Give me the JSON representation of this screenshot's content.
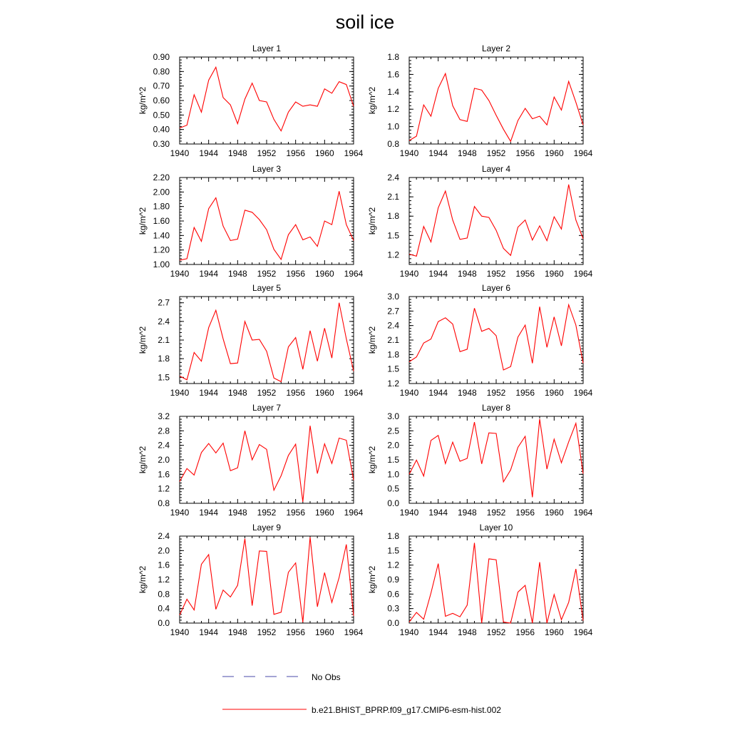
{
  "title": "soil ice",
  "legend": {
    "items": [
      {
        "label": "No Obs",
        "color": "#4a4aa8",
        "dash": true
      },
      {
        "label": "b.e21.BHIST_BPRP.f09_g17.CMIP6-esm-hist.002",
        "color": "#ff0000",
        "dash": false
      }
    ]
  },
  "chart_data": [
    {
      "type": "line",
      "title": "Layer 1",
      "ylabel": "kg/m^2",
      "xlim": [
        1940,
        1964
      ],
      "xticks": [
        1940,
        1944,
        1948,
        1952,
        1956,
        1960,
        1964
      ],
      "ylim": [
        0.3,
        0.9
      ],
      "yticks": [
        "0.30",
        "0.40",
        "0.50",
        "0.60",
        "0.70",
        "0.80",
        "0.90"
      ],
      "x": [
        1940,
        1941,
        1942,
        1943,
        1944,
        1945,
        1946,
        1947,
        1948,
        1949,
        1950,
        1951,
        1952,
        1953,
        1954,
        1955,
        1956,
        1957,
        1958,
        1959,
        1960,
        1961,
        1962,
        1963,
        1964
      ],
      "series": [
        {
          "name": "b.e21.BHIST_BPRP.f09_g17.CMIP6-esm-hist.002",
          "values": [
            0.41,
            0.43,
            0.64,
            0.52,
            0.74,
            0.83,
            0.62,
            0.57,
            0.44,
            0.61,
            0.72,
            0.6,
            0.59,
            0.47,
            0.39,
            0.52,
            0.59,
            0.56,
            0.57,
            0.56,
            0.68,
            0.65,
            0.73,
            0.71,
            0.56
          ]
        }
      ]
    },
    {
      "type": "line",
      "title": "Layer 2",
      "ylabel": "kg/m^2",
      "xlim": [
        1940,
        1964
      ],
      "xticks": [
        1940,
        1944,
        1948,
        1952,
        1956,
        1960,
        1964
      ],
      "ylim": [
        0.8,
        1.8
      ],
      "yticks": [
        "0.8",
        "1.0",
        "1.2",
        "1.4",
        "1.6",
        "1.8"
      ],
      "x": [
        1940,
        1941,
        1942,
        1943,
        1944,
        1945,
        1946,
        1947,
        1948,
        1949,
        1950,
        1951,
        1952,
        1953,
        1954,
        1955,
        1956,
        1957,
        1958,
        1959,
        1960,
        1961,
        1962,
        1963,
        1964
      ],
      "series": [
        {
          "name": "b.e21.BHIST_BPRP.f09_g17.CMIP6-esm-hist.002",
          "values": [
            0.84,
            0.89,
            1.25,
            1.12,
            1.44,
            1.61,
            1.24,
            1.08,
            1.06,
            1.44,
            1.42,
            1.3,
            1.13,
            0.97,
            0.83,
            1.07,
            1.21,
            1.09,
            1.12,
            1.02,
            1.34,
            1.19,
            1.52,
            1.28,
            1.02
          ]
        }
      ]
    },
    {
      "type": "line",
      "title": "Layer 3",
      "ylabel": "kg/m^2",
      "xlim": [
        1940,
        1964
      ],
      "xticks": [
        1940,
        1944,
        1948,
        1952,
        1956,
        1960,
        1964
      ],
      "ylim": [
        1.0,
        2.2
      ],
      "yticks": [
        "1.00",
        "1.20",
        "1.40",
        "1.60",
        "1.80",
        "2.00",
        "2.20"
      ],
      "x": [
        1940,
        1941,
        1942,
        1943,
        1944,
        1945,
        1946,
        1947,
        1948,
        1949,
        1950,
        1951,
        1952,
        1953,
        1954,
        1955,
        1956,
        1957,
        1958,
        1959,
        1960,
        1961,
        1962,
        1963,
        1964
      ],
      "series": [
        {
          "name": "b.e21.BHIST_BPRP.f09_g17.CMIP6-esm-hist.002",
          "values": [
            1.06,
            1.08,
            1.51,
            1.32,
            1.77,
            1.92,
            1.53,
            1.33,
            1.35,
            1.75,
            1.72,
            1.62,
            1.48,
            1.21,
            1.07,
            1.41,
            1.55,
            1.34,
            1.38,
            1.25,
            1.6,
            1.55,
            2.01,
            1.55,
            1.33
          ]
        }
      ]
    },
    {
      "type": "line",
      "title": "Layer 4",
      "ylabel": "kg/m^2",
      "xlim": [
        1940,
        1964
      ],
      "xticks": [
        1940,
        1944,
        1948,
        1952,
        1956,
        1960,
        1964
      ],
      "ylim": [
        1.05,
        2.4
      ],
      "yticks": [
        "1.2",
        "1.5",
        "1.8",
        "2.1",
        "2.4"
      ],
      "ytick_values": [
        1.2,
        1.5,
        1.8,
        2.1,
        2.4
      ],
      "x": [
        1940,
        1941,
        1942,
        1943,
        1944,
        1945,
        1946,
        1947,
        1948,
        1949,
        1950,
        1951,
        1952,
        1953,
        1954,
        1955,
        1956,
        1957,
        1958,
        1959,
        1960,
        1961,
        1962,
        1963,
        1964
      ],
      "series": [
        {
          "name": "b.e21.BHIST_BPRP.f09_g17.CMIP6-esm-hist.002",
          "values": [
            1.21,
            1.18,
            1.64,
            1.4,
            1.93,
            2.19,
            1.74,
            1.44,
            1.46,
            1.95,
            1.8,
            1.78,
            1.58,
            1.3,
            1.19,
            1.63,
            1.74,
            1.43,
            1.65,
            1.42,
            1.79,
            1.6,
            2.29,
            1.74,
            1.45
          ]
        }
      ]
    },
    {
      "type": "line",
      "title": "Layer 5",
      "ylabel": "kg/m^2",
      "xlim": [
        1940,
        1964
      ],
      "xticks": [
        1940,
        1944,
        1948,
        1952,
        1956,
        1960,
        1964
      ],
      "ylim": [
        1.4,
        2.8
      ],
      "yticks": [
        "1.5",
        "1.8",
        "2.1",
        "2.4",
        "2.7"
      ],
      "ytick_values": [
        1.5,
        1.8,
        2.1,
        2.4,
        2.7
      ],
      "x": [
        1940,
        1941,
        1942,
        1943,
        1944,
        1945,
        1946,
        1947,
        1948,
        1949,
        1950,
        1951,
        1952,
        1953,
        1954,
        1955,
        1956,
        1957,
        1958,
        1959,
        1960,
        1961,
        1962,
        1963,
        1964
      ],
      "series": [
        {
          "name": "b.e21.BHIST_BPRP.f09_g17.CMIP6-esm-hist.002",
          "values": [
            1.52,
            1.46,
            1.9,
            1.76,
            2.3,
            2.58,
            2.12,
            1.72,
            1.73,
            2.4,
            2.1,
            2.11,
            1.92,
            1.49,
            1.43,
            1.99,
            2.14,
            1.63,
            2.25,
            1.76,
            2.29,
            1.81,
            2.7,
            2.12,
            1.6
          ]
        }
      ]
    },
    {
      "type": "line",
      "title": "Layer 6",
      "ylabel": "kg/m^2",
      "xlim": [
        1940,
        1964
      ],
      "xticks": [
        1940,
        1944,
        1948,
        1952,
        1956,
        1960,
        1964
      ],
      "ylim": [
        1.2,
        3.0
      ],
      "yticks": [
        "1.2",
        "1.5",
        "1.8",
        "2.1",
        "2.4",
        "2.7",
        "3.0"
      ],
      "x": [
        1940,
        1941,
        1942,
        1943,
        1944,
        1945,
        1946,
        1947,
        1948,
        1949,
        1950,
        1951,
        1952,
        1953,
        1954,
        1955,
        1956,
        1957,
        1958,
        1959,
        1960,
        1961,
        1962,
        1963,
        1964
      ],
      "series": [
        {
          "name": "b.e21.BHIST_BPRP.f09_g17.CMIP6-esm-hist.002",
          "values": [
            1.65,
            1.75,
            2.04,
            2.12,
            2.48,
            2.56,
            2.43,
            1.86,
            1.91,
            2.76,
            2.28,
            2.34,
            2.19,
            1.48,
            1.55,
            2.16,
            2.41,
            1.62,
            2.79,
            1.95,
            2.58,
            1.98,
            2.83,
            2.41,
            1.62
          ]
        }
      ]
    },
    {
      "type": "line",
      "title": "Layer 7",
      "ylabel": "kg/m^2",
      "xlim": [
        1940,
        1964
      ],
      "xticks": [
        1940,
        1944,
        1948,
        1952,
        1956,
        1960,
        1964
      ],
      "ylim": [
        0.8,
        3.2
      ],
      "yticks": [
        "0.8",
        "1.2",
        "1.6",
        "2.0",
        "2.4",
        "2.8",
        "3.2"
      ],
      "x": [
        1940,
        1941,
        1942,
        1943,
        1944,
        1945,
        1946,
        1947,
        1948,
        1949,
        1950,
        1951,
        1952,
        1953,
        1954,
        1955,
        1956,
        1957,
        1958,
        1959,
        1960,
        1961,
        1962,
        1963,
        1964
      ],
      "series": [
        {
          "name": "b.e21.BHIST_BPRP.f09_g17.CMIP6-esm-hist.002",
          "values": [
            1.4,
            1.76,
            1.58,
            2.2,
            2.45,
            2.19,
            2.46,
            1.7,
            1.78,
            2.8,
            2.0,
            2.42,
            2.29,
            1.16,
            1.56,
            2.12,
            2.43,
            0.84,
            2.94,
            1.62,
            2.44,
            1.9,
            2.6,
            2.54,
            1.44
          ]
        }
      ]
    },
    {
      "type": "line",
      "title": "Layer 8",
      "ylabel": "kg/m^2",
      "xlim": [
        1940,
        1964
      ],
      "xticks": [
        1940,
        1944,
        1948,
        1952,
        1956,
        1960,
        1964
      ],
      "ylim": [
        0.0,
        3.0
      ],
      "yticks": [
        "0.0",
        "0.5",
        "1.0",
        "1.5",
        "2.0",
        "2.5",
        "3.0"
      ],
      "x": [
        1940,
        1941,
        1942,
        1943,
        1944,
        1945,
        1946,
        1947,
        1948,
        1949,
        1950,
        1951,
        1952,
        1953,
        1954,
        1955,
        1956,
        1957,
        1958,
        1959,
        1960,
        1961,
        1962,
        1963,
        1964
      ],
      "series": [
        {
          "name": "b.e21.BHIST_BPRP.f09_g17.CMIP6-esm-hist.002",
          "values": [
            1.0,
            1.49,
            0.94,
            2.17,
            2.34,
            1.37,
            2.11,
            1.45,
            1.55,
            2.8,
            1.36,
            2.43,
            2.41,
            0.74,
            1.15,
            1.93,
            2.31,
            0.21,
            2.91,
            1.18,
            2.21,
            1.4,
            2.12,
            2.76,
            1.02
          ]
        }
      ]
    },
    {
      "type": "line",
      "title": "Layer 9",
      "ylabel": "kg/m^2",
      "xlim": [
        1940,
        1964
      ],
      "xticks": [
        1940,
        1944,
        1948,
        1952,
        1956,
        1960,
        1964
      ],
      "ylim": [
        0.0,
        2.4
      ],
      "yticks": [
        "0.0",
        "0.4",
        "0.8",
        "1.2",
        "1.6",
        "2.0",
        "2.4"
      ],
      "x": [
        1940,
        1941,
        1942,
        1943,
        1944,
        1945,
        1946,
        1947,
        1948,
        1949,
        1950,
        1951,
        1952,
        1953,
        1954,
        1955,
        1956,
        1957,
        1958,
        1959,
        1960,
        1961,
        1962,
        1963,
        1964
      ],
      "series": [
        {
          "name": "b.e21.BHIST_BPRP.f09_g17.CMIP6-esm-hist.002",
          "values": [
            0.22,
            0.66,
            0.36,
            1.62,
            1.89,
            0.38,
            0.91,
            0.72,
            1.04,
            2.33,
            0.48,
            1.99,
            1.98,
            0.24,
            0.3,
            1.4,
            1.66,
            0.02,
            2.37,
            0.45,
            1.39,
            0.57,
            1.26,
            2.17,
            0.2
          ]
        }
      ]
    },
    {
      "type": "line",
      "title": "Layer 10",
      "ylabel": "kg/m^2",
      "xlim": [
        1940,
        1964
      ],
      "xticks": [
        1940,
        1944,
        1948,
        1952,
        1956,
        1960,
        1964
      ],
      "ylim": [
        0.0,
        1.8
      ],
      "yticks": [
        "0.0",
        "0.3",
        "0.6",
        "0.9",
        "1.2",
        "1.5",
        "1.8"
      ],
      "x": [
        1940,
        1941,
        1942,
        1943,
        1944,
        1945,
        1946,
        1947,
        1948,
        1949,
        1950,
        1951,
        1952,
        1953,
        1954,
        1955,
        1956,
        1957,
        1958,
        1959,
        1960,
        1961,
        1962,
        1963,
        1964
      ],
      "series": [
        {
          "name": "b.e21.BHIST_BPRP.f09_g17.CMIP6-esm-hist.002",
          "values": [
            0.02,
            0.22,
            0.08,
            0.62,
            1.23,
            0.14,
            0.2,
            0.13,
            0.37,
            1.66,
            0.0,
            1.33,
            1.31,
            0.02,
            0.0,
            0.64,
            0.78,
            0.0,
            1.26,
            0.0,
            0.59,
            0.07,
            0.43,
            1.12,
            0.05
          ]
        }
      ]
    }
  ]
}
